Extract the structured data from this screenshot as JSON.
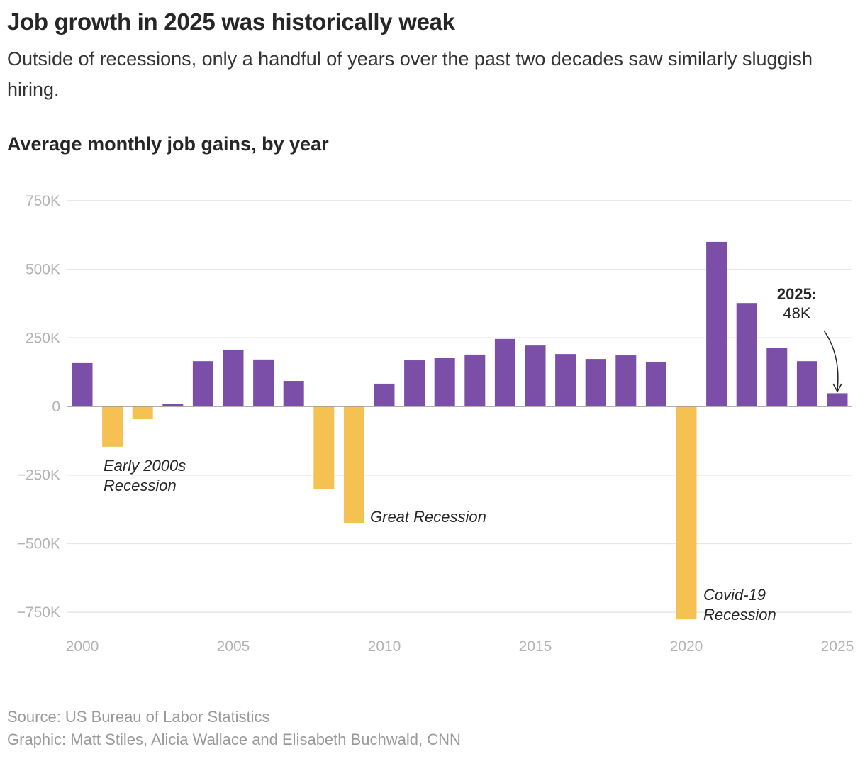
{
  "title": "Job growth in 2025 was historically weak",
  "subtitle": "Outside of recessions, only a handful of years over the past two decades saw similarly sluggish hiring.",
  "source": "Source: US Bureau of Labor Statistics",
  "credit": "Graphic: Matt Stiles, Alicia Wallace and Elisabeth Buchwald, CNN",
  "chart_data": {
    "type": "bar",
    "title": "Average monthly job gains, by year",
    "xlabel": "",
    "ylabel": "",
    "ylim": [
      -750000,
      750000
    ],
    "grid": true,
    "colors": {
      "positive": "#7b4fa8",
      "negative": "#f6c153"
    },
    "y_ticks": [
      {
        "value": 750000,
        "label": "750K"
      },
      {
        "value": 500000,
        "label": "500K"
      },
      {
        "value": 250000,
        "label": "250K"
      },
      {
        "value": 0,
        "label": "0"
      },
      {
        "value": -250000,
        "label": "−250K"
      },
      {
        "value": -500000,
        "label": "−500K"
      },
      {
        "value": -750000,
        "label": "−750K"
      }
    ],
    "x_ticks": [
      "2000",
      "2005",
      "2010",
      "2015",
      "2020",
      "2025"
    ],
    "categories": [
      2000,
      2001,
      2002,
      2003,
      2004,
      2005,
      2006,
      2007,
      2008,
      2009,
      2010,
      2011,
      2012,
      2013,
      2014,
      2015,
      2016,
      2017,
      2018,
      2019,
      2020,
      2021,
      2022,
      2023,
      2024,
      2025
    ],
    "values": [
      158000,
      -147000,
      -45000,
      8000,
      165000,
      207000,
      171000,
      93000,
      -300000,
      -424000,
      83000,
      168000,
      178000,
      189000,
      246000,
      222000,
      191000,
      173000,
      186000,
      163000,
      -776000,
      600000,
      377000,
      212000,
      165000,
      48000
    ],
    "annotations": [
      {
        "year": 2001,
        "lines": [
          "Early 2000s",
          "Recession"
        ]
      },
      {
        "year": 2009,
        "lines": [
          "Great Recession"
        ]
      },
      {
        "year": 2020,
        "lines": [
          "Covid-19",
          "Recession"
        ]
      },
      {
        "year": 2025,
        "label": "2025:",
        "value": "48K"
      }
    ]
  }
}
